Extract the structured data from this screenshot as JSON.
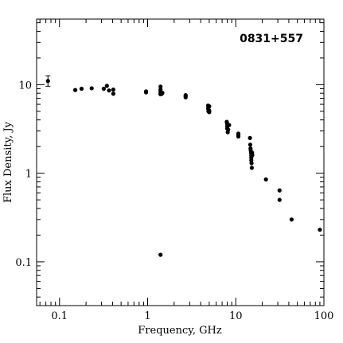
{
  "chart_data": {
    "type": "scatter",
    "title": "0831+557",
    "xlabel": "Frequency, GHz",
    "ylabel": "Flux Density, Jy",
    "xscale": "log",
    "yscale": "log",
    "xlim": [
      0.055,
      100
    ],
    "ylim": [
      0.032,
      55
    ],
    "grid": false,
    "xticks": [
      {
        "value": 0.1,
        "label": "0.1"
      },
      {
        "value": 1,
        "label": "1"
      },
      {
        "value": 10,
        "label": "10"
      },
      {
        "value": 100,
        "label": "100"
      }
    ],
    "yticks": [
      {
        "value": 0.1,
        "label": "0.1"
      },
      {
        "value": 1,
        "label": "1"
      },
      {
        "value": 10,
        "label": "10"
      }
    ],
    "errorbars": [
      {
        "x": 0.074,
        "y": 11.0,
        "ylow": 9.6,
        "yhigh": 12.6
      }
    ],
    "series": [
      {
        "x": [
          0.074,
          0.151,
          0.178,
          0.232,
          0.318,
          0.345,
          0.365,
          0.408,
          0.408,
          0.96,
          0.96,
          1.4,
          1.4,
          1.4,
          1.4,
          1.4,
          1.41,
          1.42,
          1.45,
          1.47,
          1.4,
          2.7,
          2.7,
          2.7,
          4.85,
          4.85,
          4.9,
          4.9,
          4.95,
          5.0,
          5.0,
          5.0,
          7.9,
          8.0,
          8.0,
          8.0,
          8.1,
          8.2,
          8.4,
          10.7,
          10.7,
          10.7,
          14.5,
          14.6,
          14.7,
          14.8,
          14.9,
          15.0,
          15.0,
          15.0,
          15.1,
          15.2,
          15.3,
          15.4,
          22.0,
          31.4,
          31.4,
          43.0,
          90.0
        ],
        "y": [
          11.0,
          8.7,
          9.0,
          9.1,
          9.0,
          9.7,
          8.6,
          8.8,
          7.9,
          8.2,
          8.4,
          9.5,
          8.8,
          8.4,
          8.0,
          7.8,
          8.2,
          8.0,
          7.9,
          8.1,
          0.12,
          7.2,
          7.6,
          7.4,
          5.8,
          5.4,
          5.2,
          5.0,
          5.6,
          4.9,
          5.7,
          5.1,
          3.8,
          3.6,
          3.4,
          3.2,
          2.9,
          3.1,
          3.5,
          2.8,
          2.7,
          2.6,
          2.5,
          2.1,
          1.9,
          1.8,
          1.7,
          1.6,
          1.5,
          1.4,
          1.3,
          1.15,
          1.7,
          1.6,
          0.85,
          0.64,
          0.5,
          0.3,
          0.23
        ]
      }
    ]
  }
}
